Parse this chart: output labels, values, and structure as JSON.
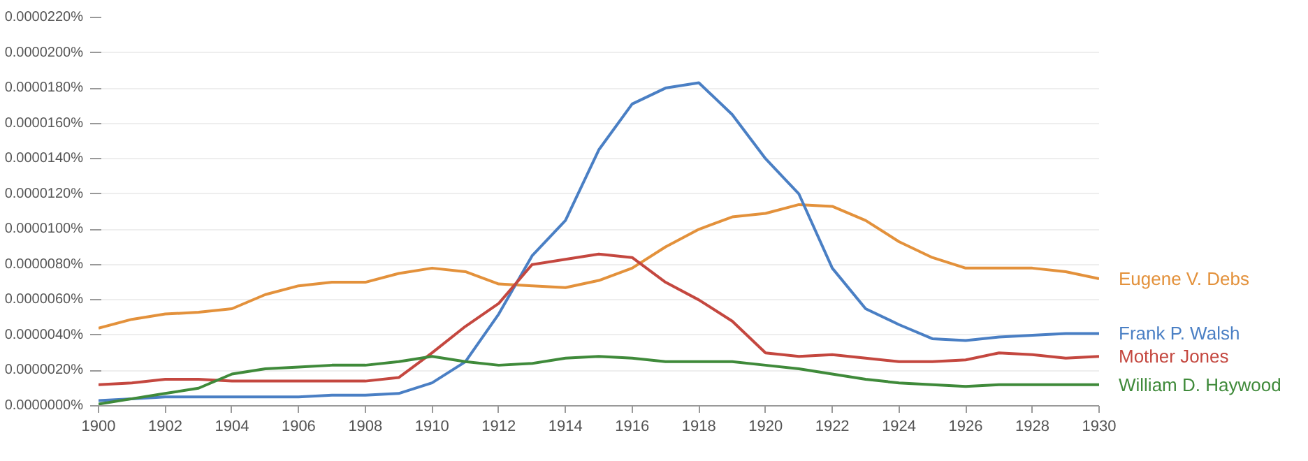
{
  "chart_data": {
    "type": "line",
    "x": [
      1900,
      1901,
      1902,
      1903,
      1904,
      1905,
      1906,
      1907,
      1908,
      1909,
      1910,
      1911,
      1912,
      1913,
      1914,
      1915,
      1916,
      1917,
      1918,
      1919,
      1920,
      1921,
      1922,
      1923,
      1924,
      1925,
      1926,
      1927,
      1928,
      1929,
      1930
    ],
    "series": [
      {
        "name": "Eugene V. Debs",
        "color": "#e3913b",
        "values": [
          4.4e-06,
          4.9e-06,
          5.2e-06,
          5.3e-06,
          5.5e-06,
          6.3e-06,
          6.8e-06,
          7e-06,
          7e-06,
          7.5e-06,
          7.8e-06,
          7.6e-06,
          6.9e-06,
          6.8e-06,
          6.7e-06,
          7.1e-06,
          7.8e-06,
          9e-06,
          1e-05,
          1.07e-05,
          1.09e-05,
          1.14e-05,
          1.13e-05,
          1.05e-05,
          9.3e-06,
          8.4e-06,
          7.8e-06,
          7.8e-06,
          7.8e-06,
          7.6e-06,
          7.2e-06
        ]
      },
      {
        "name": "Frank P. Walsh",
        "color": "#4a7fc4",
        "values": [
          3e-07,
          4e-07,
          5e-07,
          5e-07,
          5e-07,
          5e-07,
          5e-07,
          6e-07,
          6e-07,
          7e-07,
          1.3e-06,
          2.5e-06,
          5.2e-06,
          8.5e-06,
          1.05e-05,
          1.45e-05,
          1.71e-05,
          1.8e-05,
          1.83e-05,
          1.65e-05,
          1.4e-05,
          1.2e-05,
          7.8e-06,
          5.5e-06,
          4.6e-06,
          3.8e-06,
          3.7e-06,
          3.9e-06,
          4e-06,
          4.1e-06,
          4.1e-06
        ]
      },
      {
        "name": "Mother Jones",
        "color": "#c4473f",
        "values": [
          1.2e-06,
          1.3e-06,
          1.5e-06,
          1.5e-06,
          1.4e-06,
          1.4e-06,
          1.4e-06,
          1.4e-06,
          1.4e-06,
          1.6e-06,
          3e-06,
          4.5e-06,
          5.8e-06,
          8e-06,
          8.3e-06,
          8.6e-06,
          8.4e-06,
          7e-06,
          6e-06,
          4.8e-06,
          3e-06,
          2.8e-06,
          2.9e-06,
          2.7e-06,
          2.5e-06,
          2.5e-06,
          2.6e-06,
          3e-06,
          2.9e-06,
          2.7e-06,
          2.8e-06
        ]
      },
      {
        "name": "William D. Haywood",
        "color": "#3f8a3a",
        "values": [
          1e-07,
          4e-07,
          7e-07,
          1e-06,
          1.8e-06,
          2.1e-06,
          2.2e-06,
          2.3e-06,
          2.3e-06,
          2.5e-06,
          2.8e-06,
          2.5e-06,
          2.3e-06,
          2.4e-06,
          2.7e-06,
          2.8e-06,
          2.7e-06,
          2.5e-06,
          2.5e-06,
          2.5e-06,
          2.3e-06,
          2.1e-06,
          1.8e-06,
          1.5e-06,
          1.3e-06,
          1.2e-06,
          1.1e-06,
          1.2e-06,
          1.2e-06,
          1.2e-06,
          1.2e-06
        ]
      }
    ],
    "xlim": [
      1900,
      1930
    ],
    "xticks": [
      1900,
      1902,
      1904,
      1906,
      1908,
      1910,
      1912,
      1914,
      1916,
      1918,
      1920,
      1922,
      1924,
      1926,
      1928,
      1930
    ],
    "ylim": [
      0,
      2.2e-05
    ],
    "yticks": [
      {
        "value": 0,
        "label": "0.0000000%"
      },
      {
        "value": 2e-06,
        "label": "0.0000020%"
      },
      {
        "value": 4e-06,
        "label": "0.0000040%"
      },
      {
        "value": 6e-06,
        "label": "0.0000060%"
      },
      {
        "value": 8e-06,
        "label": "0.0000080%"
      },
      {
        "value": 1e-05,
        "label": "0.0000100%"
      },
      {
        "value": 1.2e-05,
        "label": "0.0000120%"
      },
      {
        "value": 1.4e-05,
        "label": "0.0000140%"
      },
      {
        "value": 1.6e-05,
        "label": "0.0000160%"
      },
      {
        "value": 1.8e-05,
        "label": "0.0000180%"
      },
      {
        "value": 2e-05,
        "label": "0.0000200%"
      },
      {
        "value": 2.2e-05,
        "label": "0.0000220%"
      }
    ],
    "grid": "y",
    "marker": "none",
    "line_style": "solid"
  }
}
